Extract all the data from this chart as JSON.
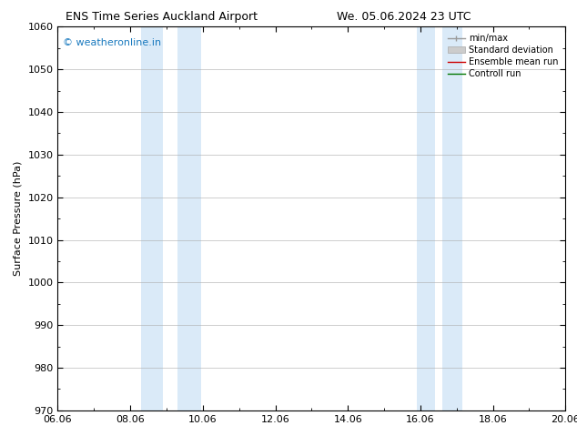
{
  "title_left": "ENS Time Series Auckland Airport",
  "title_right": "We. 05.06.2024 23 UTC",
  "ylabel": "Surface Pressure (hPa)",
  "ylim": [
    970,
    1060
  ],
  "yticks": [
    970,
    980,
    990,
    1000,
    1010,
    1020,
    1030,
    1040,
    1050,
    1060
  ],
  "xlim_num": [
    0,
    14
  ],
  "xtick_labels": [
    "06.06",
    "08.06",
    "10.06",
    "12.06",
    "14.06",
    "16.06",
    "18.06",
    "20.06"
  ],
  "xtick_positions": [
    0,
    2,
    4,
    6,
    8,
    10,
    12,
    14
  ],
  "shaded_bands": [
    {
      "xmin": 2.3,
      "xmax": 2.9,
      "color": "#daeaf8"
    },
    {
      "xmin": 3.3,
      "xmax": 3.95,
      "color": "#daeaf8"
    },
    {
      "xmin": 9.9,
      "xmax": 10.4,
      "color": "#daeaf8"
    },
    {
      "xmin": 10.6,
      "xmax": 11.15,
      "color": "#daeaf8"
    }
  ],
  "watermark": "© weatheronline.in",
  "watermark_color": "#1a7abf",
  "legend_items": [
    {
      "label": "min/max",
      "color": "#999999",
      "lw": 1.0
    },
    {
      "label": "Standard deviation",
      "color": "#cccccc",
      "lw": 6
    },
    {
      "label": "Ensemble mean run",
      "color": "#cc0000",
      "lw": 1.0
    },
    {
      "label": "Controll run",
      "color": "#007700",
      "lw": 1.0
    }
  ],
  "background_color": "#ffffff",
  "plot_bg_color": "#ffffff",
  "grid_color": "#aaaaaa",
  "border_color": "#000000",
  "title_fontsize": 9,
  "tick_fontsize": 8,
  "ylabel_fontsize": 8
}
